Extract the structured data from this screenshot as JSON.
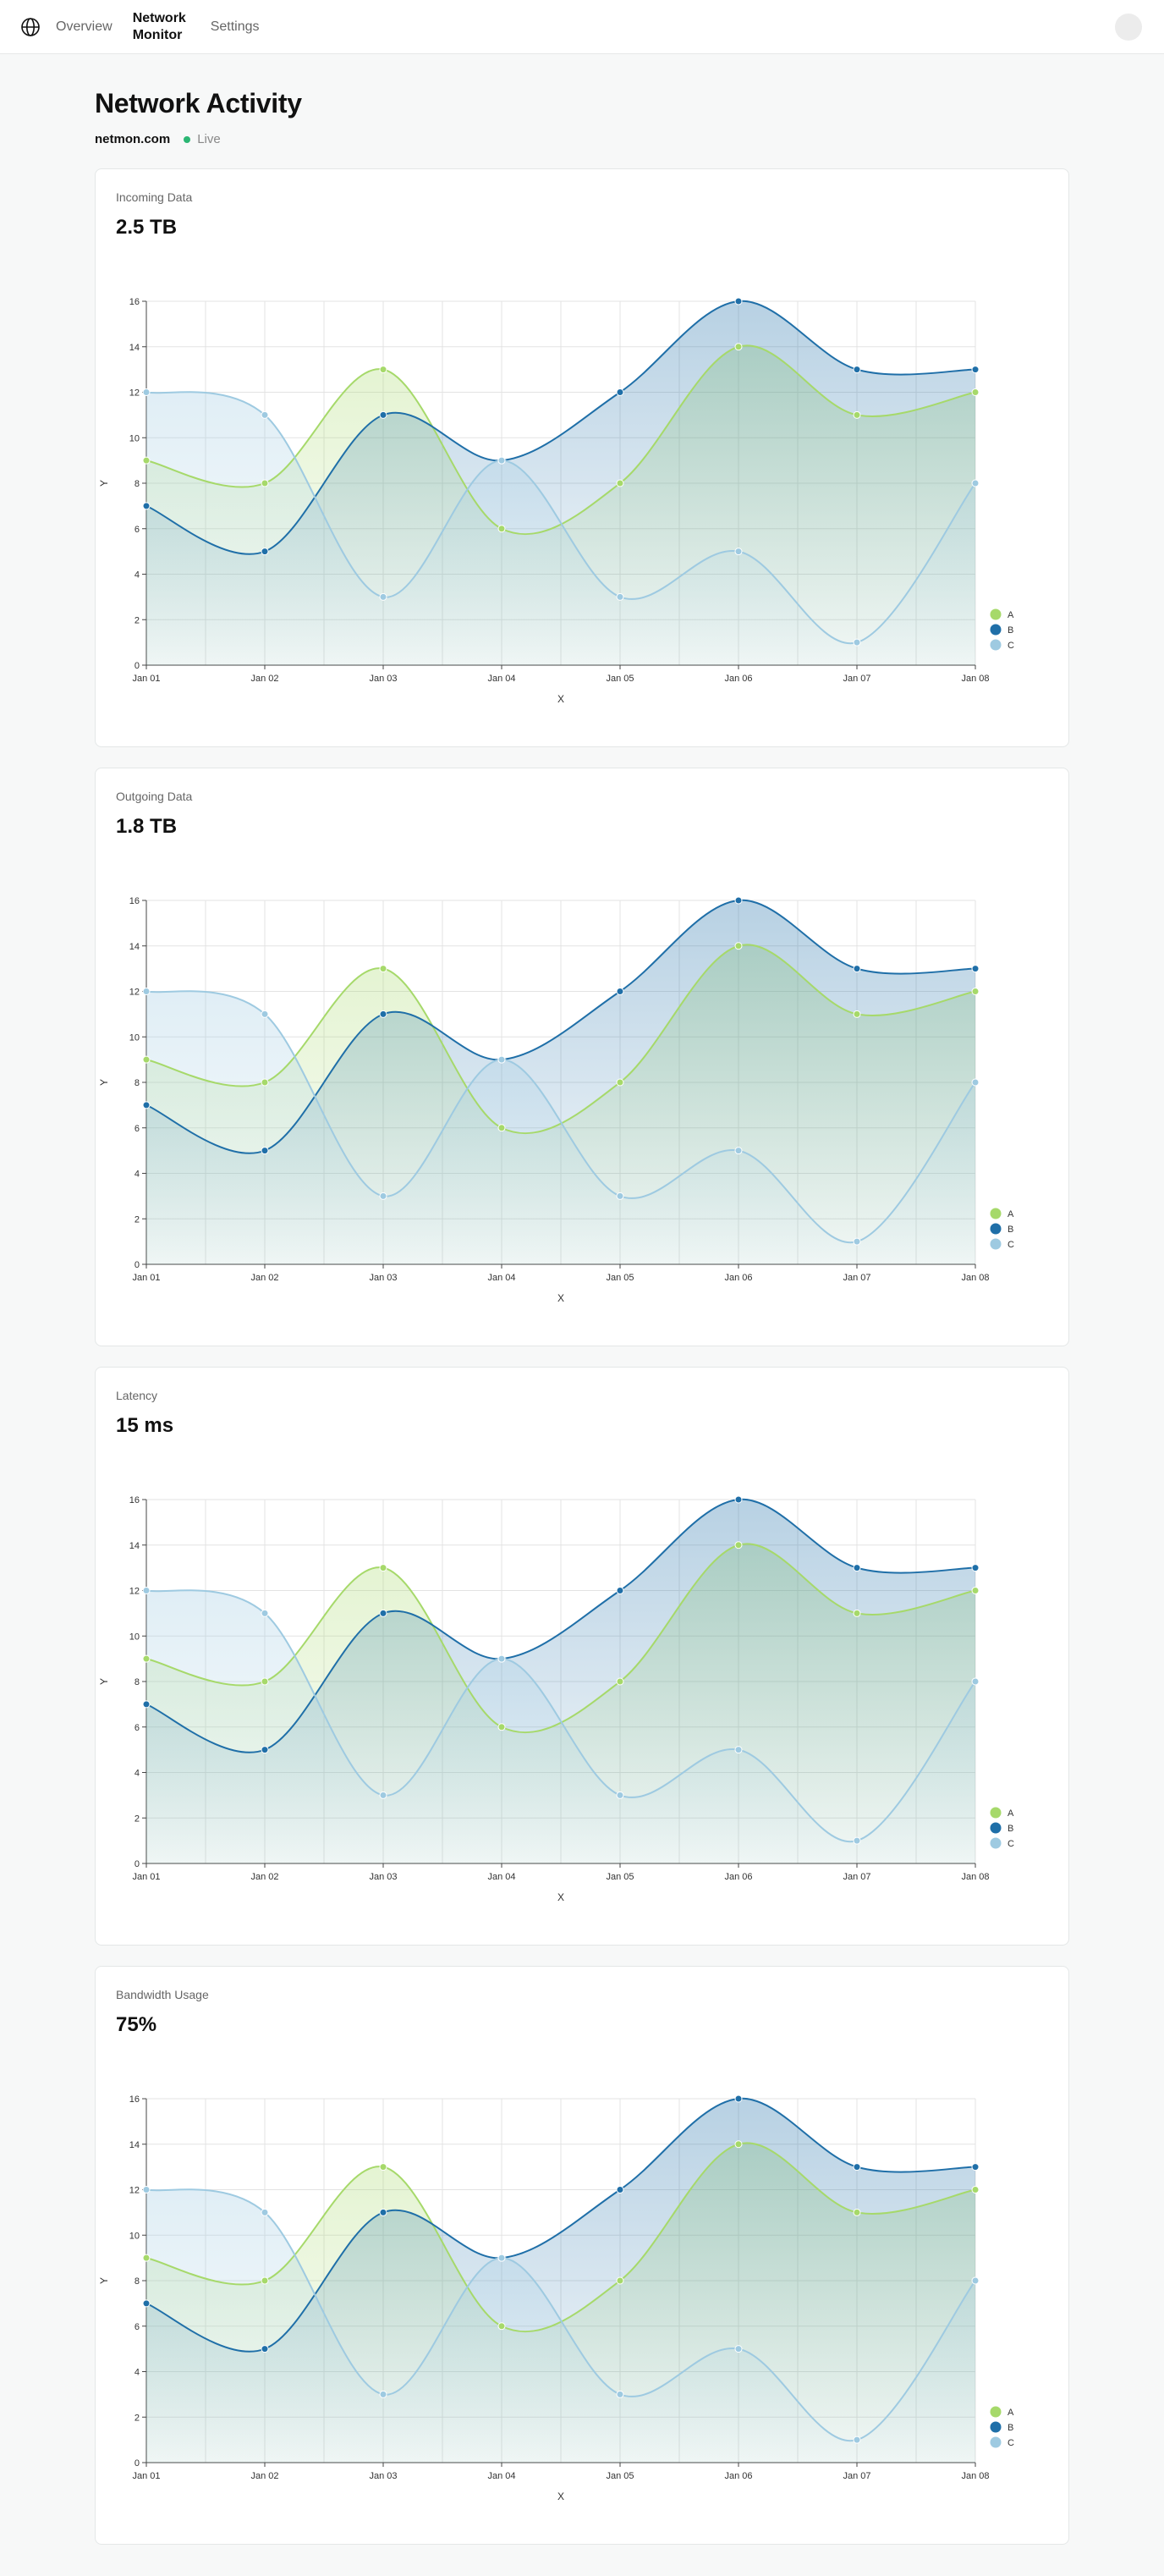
{
  "nav": {
    "links": [
      "Overview",
      "Network Monitor",
      "Settings"
    ],
    "active_index": 1
  },
  "header": {
    "title": "Network Activity",
    "domain": "netmon.com",
    "status": "Live"
  },
  "colors": {
    "series_a": "#a6d96a",
    "series_b": "#1f6fa8",
    "series_c": "#9ecae1",
    "live": "#2bb673"
  },
  "cards": [
    {
      "label": "Incoming Data",
      "value": "2.5 TB"
    },
    {
      "label": "Outgoing Data",
      "value": "1.8 TB"
    },
    {
      "label": "Latency",
      "value": "15 ms"
    },
    {
      "label": "Bandwidth Usage",
      "value": "75%"
    }
  ],
  "chart_data": {
    "type": "area",
    "x": [
      "Jan 01",
      "Jan 02",
      "Jan 03",
      "Jan 04",
      "Jan 05",
      "Jan 06",
      "Jan 07",
      "Jan 08"
    ],
    "xlabel": "X",
    "ylabel": "Y",
    "ylim": [
      0,
      16
    ],
    "yticks": [
      0,
      2,
      4,
      6,
      8,
      10,
      12,
      14,
      16
    ],
    "grid": true,
    "legend": "bottom-right",
    "series": [
      {
        "name": "A",
        "values": [
          9,
          8,
          13,
          6,
          8,
          14,
          11,
          12
        ]
      },
      {
        "name": "B",
        "values": [
          7,
          5,
          11,
          9,
          12,
          16,
          13,
          13
        ]
      },
      {
        "name": "C",
        "values": [
          12,
          11,
          3,
          9,
          3,
          5,
          1,
          8
        ]
      }
    ]
  }
}
